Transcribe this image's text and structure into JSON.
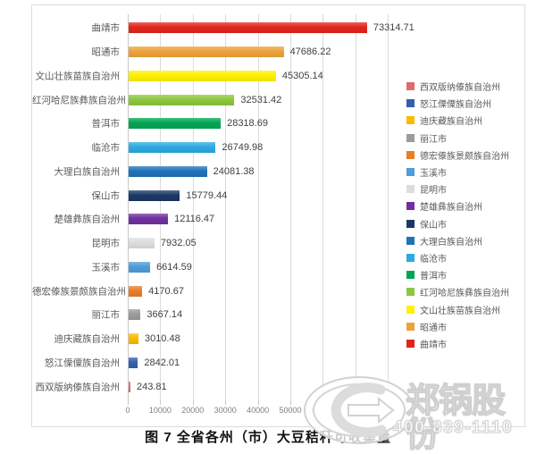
{
  "figure": {
    "caption": "图 7 全省各州（市）大豆秸秆可收集量"
  },
  "watermark": {
    "company": "郑锅股份",
    "phone": "400-839-1110",
    "logo_icon": "zg-boiler-oval-logo-icon"
  },
  "chart_data": {
    "type": "bar",
    "orientation": "horizontal",
    "title": "",
    "xlabel": "",
    "ylabel": "",
    "xlim": [
      0,
      80000
    ],
    "xticks": [
      0,
      10000,
      20000,
      30000,
      40000,
      50000,
      60000,
      70000,
      80000
    ],
    "grid": "vertical gridlines on",
    "legend_position": "right",
    "value_label_decimals": 2,
    "categories": [
      "曲靖市",
      "昭通市",
      "文山壮族苗族自治州",
      "红河哈尼族彝族自治州",
      "普洱市",
      "临沧市",
      "大理白族自治州",
      "保山市",
      "楚雄彝族自治州",
      "昆明市",
      "玉溪市",
      "德宏傣族景颇族自治州",
      "丽江市",
      "迪庆藏族自治州",
      "怒江傈僳族自治州",
      "西双版纳傣族自治州"
    ],
    "values": [
      73314.71,
      47686.22,
      45305.14,
      32531.42,
      28318.69,
      26749.98,
      24081.38,
      15779.44,
      12116.47,
      7932.05,
      6614.59,
      4170.67,
      3667.14,
      3010.48,
      2842.01,
      243.81
    ],
    "colors": [
      "#E1251B",
      "#EBA33A",
      "#FFF100",
      "#8CC63E",
      "#00A551",
      "#2BAAE2",
      "#1E72B8",
      "#1B3864",
      "#7030A0",
      "#DDDDDD",
      "#4E9CD8",
      "#E87E26",
      "#9B9B9B",
      "#FABB00",
      "#345FAC",
      "#E06A6E"
    ]
  },
  "style_colors": {
    "gridline": "#dadada",
    "axis_text": "#7f7f7f",
    "category_text": "#595959",
    "value_text": "#3f3f3f",
    "frame_border": "#dcdcdc"
  }
}
